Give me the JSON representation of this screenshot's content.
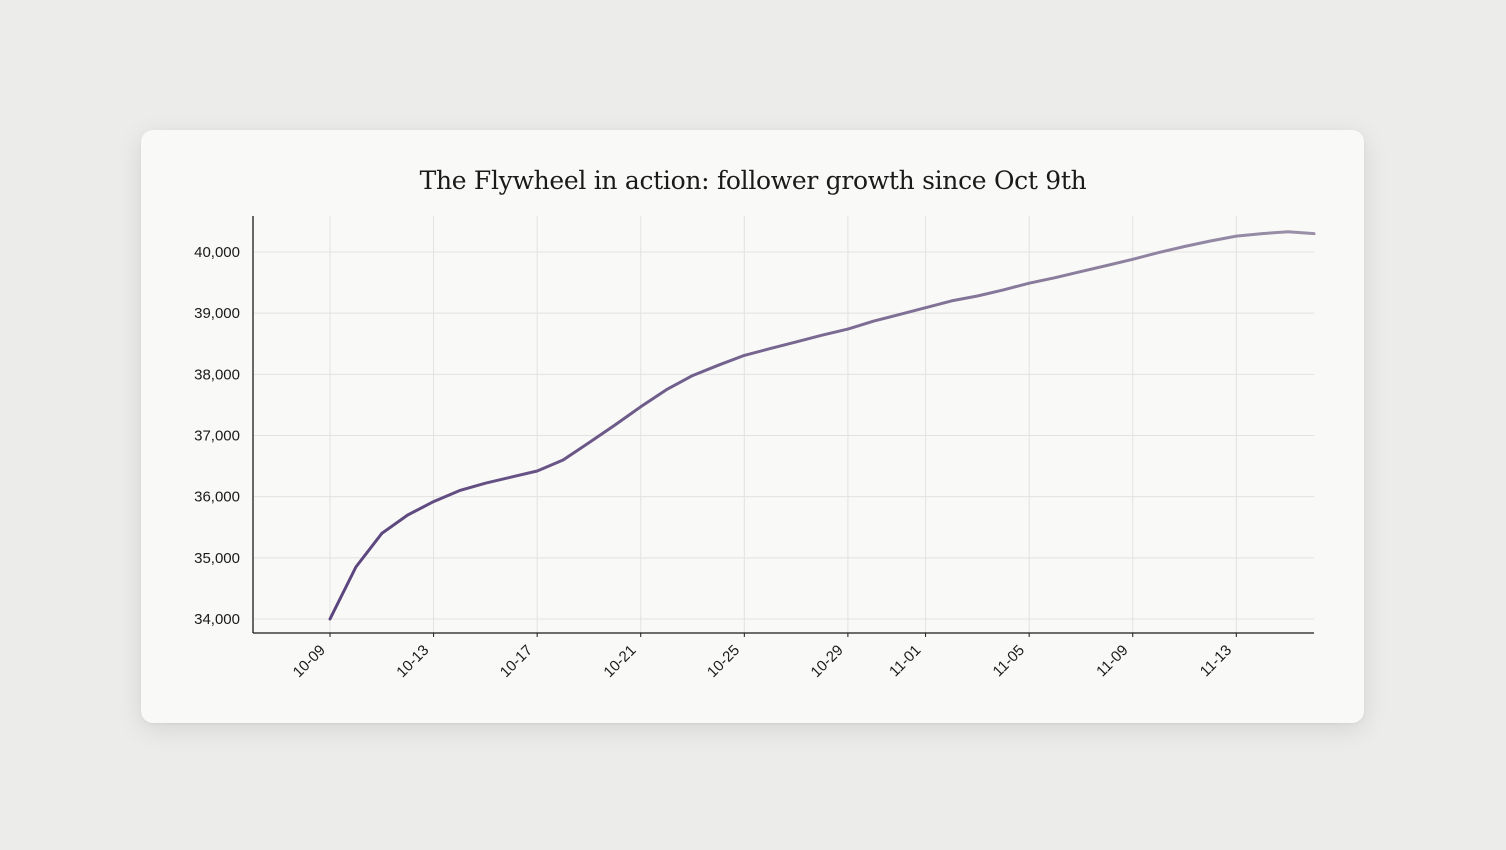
{
  "chart_data": {
    "type": "line",
    "title": "The Flywheel in action: follower growth since Oct 9th",
    "xlabel": "",
    "ylabel": "",
    "grid": true,
    "ylim": [
      33800,
      40600
    ],
    "yticks": [
      34000,
      35000,
      36000,
      37000,
      38000,
      39000,
      40000
    ],
    "ytick_labels": [
      "34,000",
      "35,000",
      "36,000",
      "37,000",
      "38,000",
      "39,000",
      "40,000"
    ],
    "x_start_day": 0,
    "x_end_day": 38,
    "xtick_days": [
      0,
      4,
      8,
      12,
      16,
      20,
      23,
      27,
      31,
      35
    ],
    "xtick_labels": [
      "10-09",
      "10-13",
      "10-17",
      "10-21",
      "10-25",
      "10-29",
      "11-01",
      "11-05",
      "11-09",
      "11-13"
    ],
    "line_color_start": "#5a447c",
    "line_color_end": "#9a90a8",
    "series": [
      {
        "name": "Followers",
        "x_days": [
          0,
          1,
          2,
          3,
          4,
          5,
          6,
          7,
          8,
          9,
          10,
          11,
          12,
          13,
          14,
          15,
          16,
          17,
          18,
          19,
          20,
          21,
          22,
          23,
          24,
          25,
          26,
          27,
          28,
          29,
          30,
          31,
          32,
          33,
          34,
          35,
          36,
          37,
          38
        ],
        "values": [
          34000,
          34850,
          35400,
          35700,
          35920,
          36100,
          36220,
          36320,
          36420,
          36600,
          36880,
          37170,
          37470,
          37750,
          37980,
          38150,
          38310,
          38420,
          38530,
          38640,
          38740,
          38870,
          38980,
          39090,
          39200,
          39280,
          39380,
          39490,
          39580,
          39680,
          39780,
          39880,
          39990,
          40090,
          40180,
          40260,
          40300,
          40330,
          40300
        ]
      }
    ]
  }
}
